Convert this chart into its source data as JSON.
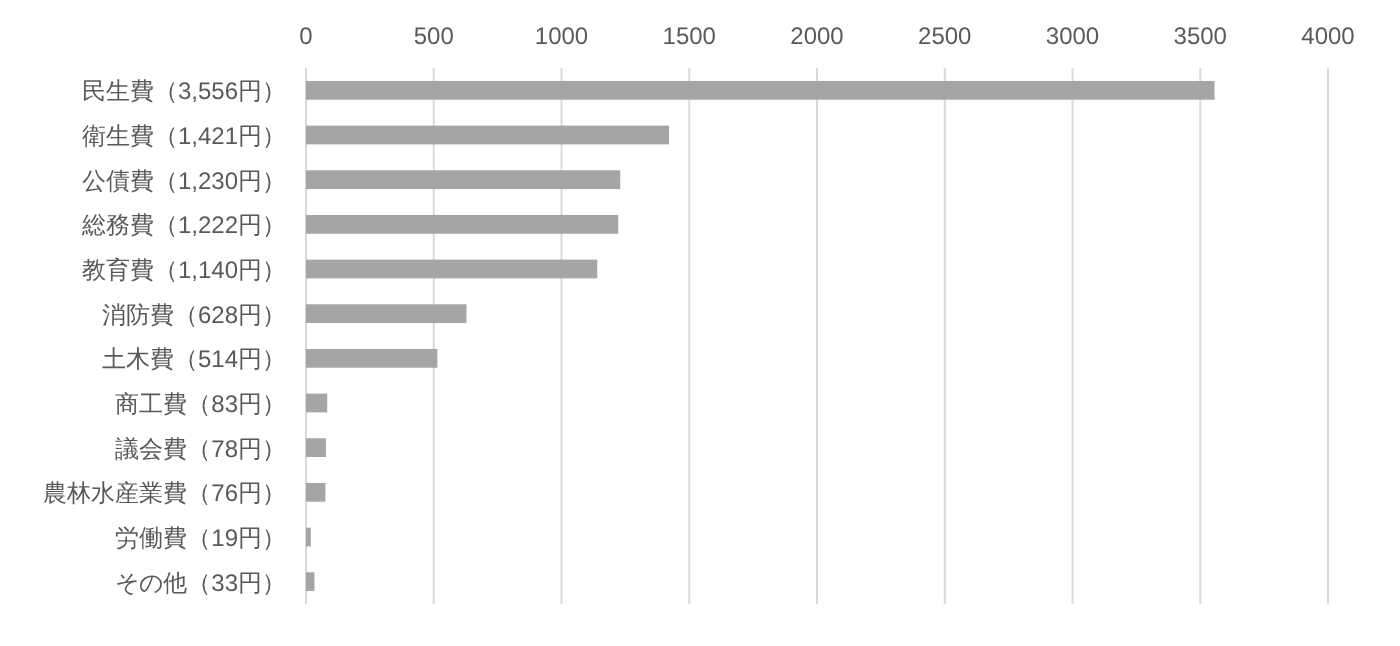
{
  "chart_data": {
    "type": "bar",
    "orientation": "horizontal",
    "categories": [
      "民生費（3,556円）",
      "衛生費（1,421円）",
      "公債費（1,230円）",
      "総務費（1,222円）",
      "教育費（1,140円）",
      "消防費（628円）",
      "土木費（514円）",
      "商工費（83円）",
      "議会費（78円）",
      "農林水産業費（76円）",
      "労働費（19円）",
      "その他（33円）"
    ],
    "values": [
      3556,
      1421,
      1230,
      1222,
      1140,
      628,
      514,
      83,
      78,
      76,
      19,
      33
    ],
    "color": "#a5a5a5",
    "xlim": [
      0,
      4000
    ],
    "xticks": [
      0,
      500,
      1000,
      1500,
      2000,
      2500,
      3000,
      3500,
      4000
    ],
    "grid": "x"
  }
}
